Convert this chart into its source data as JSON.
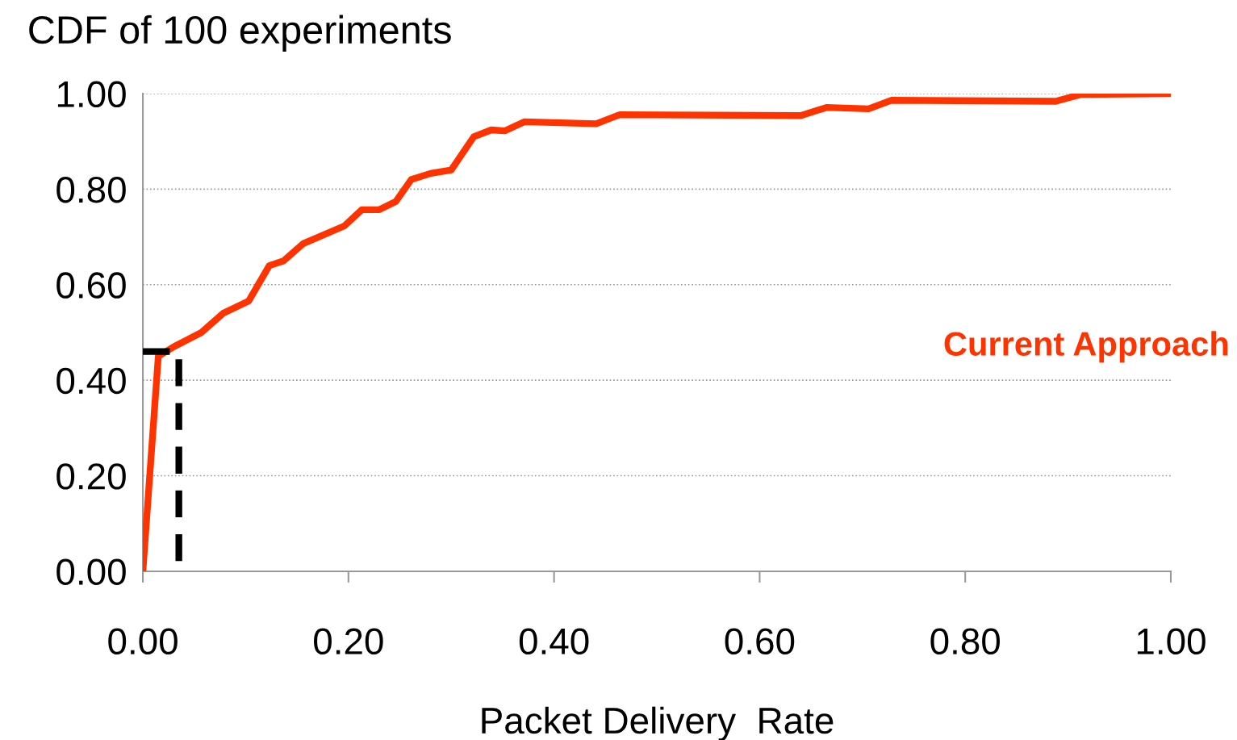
{
  "chart_data": {
    "type": "line",
    "title": "CDF of 100 experiments",
    "xlabel": "Packet Delivery  Rate",
    "xlim": [
      0,
      1
    ],
    "ylim": [
      0,
      1
    ],
    "xticks": [
      {
        "value": 0,
        "label": "0.00"
      },
      {
        "value": 0.2,
        "label": "0.20"
      },
      {
        "value": 0.4,
        "label": "0.40"
      },
      {
        "value": 0.6,
        "label": "0.60"
      },
      {
        "value": 0.8,
        "label": "0.80"
      },
      {
        "value": 1,
        "label": "1.00"
      }
    ],
    "yticks": [
      {
        "value": 0,
        "label": "0.00"
      },
      {
        "value": 0.2,
        "label": "0.20"
      },
      {
        "value": 0.4,
        "label": "0.40"
      },
      {
        "value": 0.6,
        "label": "0.60"
      },
      {
        "value": 0.8,
        "label": "0.80"
      },
      {
        "value": 1,
        "label": "1.00"
      }
    ],
    "grid": "y",
    "series": [
      {
        "name": "Current Approach",
        "color": "#ff3300",
        "line_style": "solid",
        "x": [
          0,
          0.015,
          0.03,
          0.057,
          0.078,
          0.103,
          0.123,
          0.137,
          0.156,
          0.196,
          0.213,
          0.23,
          0.246,
          0.261,
          0.28,
          0.3,
          0.322,
          0.339,
          0.352,
          0.371,
          0.441,
          0.464,
          0.64,
          0.665,
          0.706,
          0.728,
          0.888,
          0.912,
          1.0
        ],
        "values": [
          0,
          0.45,
          0.47,
          0.5,
          0.54,
          0.566,
          0.64,
          0.65,
          0.686,
          0.723,
          0.757,
          0.757,
          0.774,
          0.82,
          0.833,
          0.84,
          0.91,
          0.924,
          0.922,
          0.941,
          0.937,
          0.956,
          0.954,
          0.971,
          0.968,
          0.986,
          0.984,
          0.998,
          1.0
        ]
      },
      {
        "color": "#000000",
        "line_style": "dashed",
        "x": [
          0,
          0.035,
          0.035
        ],
        "values": [
          0.46,
          0.46,
          0
        ]
      }
    ]
  }
}
